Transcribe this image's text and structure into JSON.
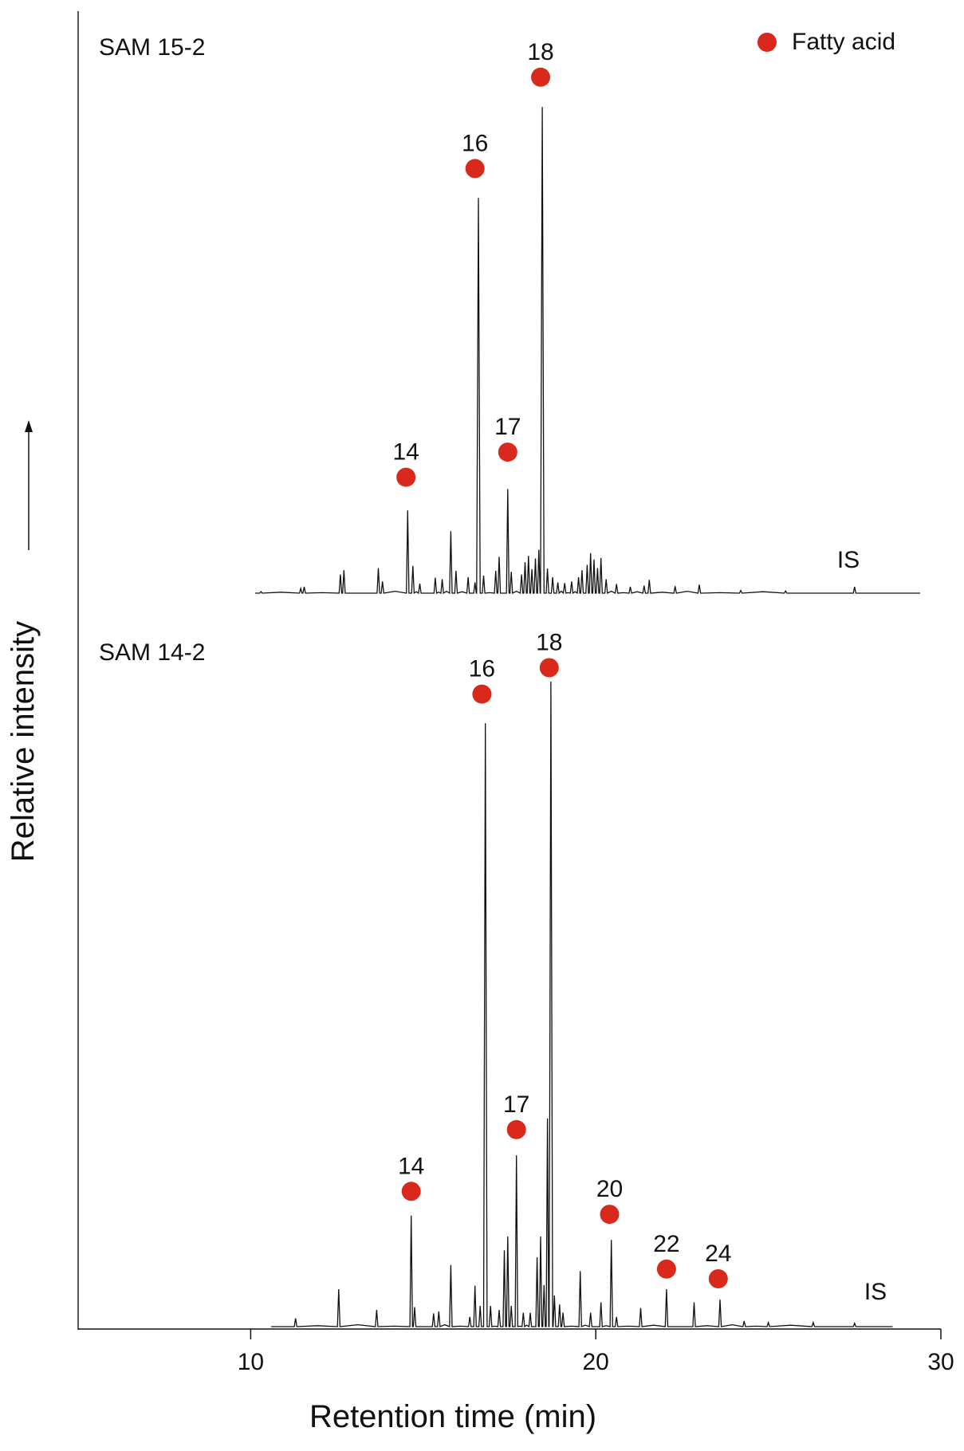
{
  "chart_data": {
    "type": "line",
    "xlabel": "Retention time (min)",
    "ylabel": "Relative intensity",
    "xlim": [
      5,
      30
    ],
    "xticks": [
      10,
      20,
      30
    ],
    "legend": {
      "label": "Fatty acid",
      "color": "#d9291c",
      "position": "top-right"
    },
    "panels": [
      {
        "name": "SAM 15-2",
        "is_label": "IS",
        "xmax": 29.4,
        "peaks": [
          {
            "x": 10.3,
            "y": 0.3
          },
          {
            "x": 11.45,
            "y": 0.9
          },
          {
            "x": 11.55,
            "y": 1.2
          },
          {
            "x": 12.6,
            "y": 3.5
          },
          {
            "x": 12.7,
            "y": 4.3
          },
          {
            "x": 13.7,
            "y": 4.7
          },
          {
            "x": 13.82,
            "y": 2.2
          },
          {
            "x": 14.55,
            "y": 15.5
          },
          {
            "x": 14.7,
            "y": 5.1
          },
          {
            "x": 14.9,
            "y": 1.8
          },
          {
            "x": 15.35,
            "y": 2.9
          },
          {
            "x": 15.55,
            "y": 2.6
          },
          {
            "x": 15.8,
            "y": 11.6
          },
          {
            "x": 15.95,
            "y": 4.2
          },
          {
            "x": 16.3,
            "y": 3.0
          },
          {
            "x": 16.5,
            "y": 2.0
          },
          {
            "x": 16.6,
            "y": 74.0
          },
          {
            "x": 16.75,
            "y": 3.3
          },
          {
            "x": 17.1,
            "y": 4.2
          },
          {
            "x": 17.2,
            "y": 6.8
          },
          {
            "x": 17.45,
            "y": 19.5
          },
          {
            "x": 17.55,
            "y": 4.0
          },
          {
            "x": 17.85,
            "y": 3.5
          },
          {
            "x": 17.95,
            "y": 5.8
          },
          {
            "x": 18.05,
            "y": 7.0
          },
          {
            "x": 18.15,
            "y": 4.5
          },
          {
            "x": 18.25,
            "y": 6.5
          },
          {
            "x": 18.35,
            "y": 8.1
          },
          {
            "x": 18.45,
            "y": 91.0
          },
          {
            "x": 18.6,
            "y": 4.6
          },
          {
            "x": 18.75,
            "y": 3.0
          },
          {
            "x": 18.9,
            "y": 2.0
          },
          {
            "x": 19.1,
            "y": 1.9
          },
          {
            "x": 19.3,
            "y": 2.2
          },
          {
            "x": 19.5,
            "y": 3.0
          },
          {
            "x": 19.6,
            "y": 4.3
          },
          {
            "x": 19.75,
            "y": 5.3
          },
          {
            "x": 19.85,
            "y": 7.5
          },
          {
            "x": 19.95,
            "y": 6.3
          },
          {
            "x": 20.05,
            "y": 4.7
          },
          {
            "x": 20.15,
            "y": 6.6
          },
          {
            "x": 20.3,
            "y": 2.6
          },
          {
            "x": 20.6,
            "y": 1.7
          },
          {
            "x": 21.0,
            "y": 1.2
          },
          {
            "x": 21.4,
            "y": 1.4
          },
          {
            "x": 21.55,
            "y": 2.5
          },
          {
            "x": 22.3,
            "y": 1.3
          },
          {
            "x": 23.0,
            "y": 1.6
          },
          {
            "x": 24.2,
            "y": 0.5
          },
          {
            "x": 25.5,
            "y": 0.4
          },
          {
            "x": 27.5,
            "y": 1.2
          }
        ],
        "fatty_acids": [
          {
            "label": "14",
            "x": 14.5,
            "y": 21.7
          },
          {
            "label": "16",
            "x": 16.5,
            "y": 79.5
          },
          {
            "label": "17",
            "x": 17.45,
            "y": 26.4
          },
          {
            "label": "18",
            "x": 18.4,
            "y": 96.6
          }
        ]
      },
      {
        "name": "SAM 14-2",
        "is_label": "IS",
        "xmax": 28.6,
        "peaks": [
          {
            "x": 11.3,
            "y": 1.2
          },
          {
            "x": 12.55,
            "y": 5.4
          },
          {
            "x": 13.65,
            "y": 2.4
          },
          {
            "x": 14.65,
            "y": 16.0
          },
          {
            "x": 14.75,
            "y": 2.8
          },
          {
            "x": 15.3,
            "y": 1.9
          },
          {
            "x": 15.45,
            "y": 2.2
          },
          {
            "x": 15.8,
            "y": 8.9
          },
          {
            "x": 16.35,
            "y": 1.4
          },
          {
            "x": 16.5,
            "y": 5.9
          },
          {
            "x": 16.65,
            "y": 3.0
          },
          {
            "x": 16.8,
            "y": 87.0
          },
          {
            "x": 16.95,
            "y": 3.0
          },
          {
            "x": 17.2,
            "y": 2.4
          },
          {
            "x": 17.35,
            "y": 11.0
          },
          {
            "x": 17.45,
            "y": 13.0
          },
          {
            "x": 17.55,
            "y": 3.0
          },
          {
            "x": 17.7,
            "y": 24.7
          },
          {
            "x": 17.9,
            "y": 2.0
          },
          {
            "x": 18.1,
            "y": 2.0
          },
          {
            "x": 18.3,
            "y": 10.0
          },
          {
            "x": 18.4,
            "y": 13.0
          },
          {
            "x": 18.5,
            "y": 6.0
          },
          {
            "x": 18.6,
            "y": 30.0
          },
          {
            "x": 18.7,
            "y": 93.0
          },
          {
            "x": 18.8,
            "y": 4.5
          },
          {
            "x": 18.95,
            "y": 3.2
          },
          {
            "x": 19.05,
            "y": 2.0
          },
          {
            "x": 19.55,
            "y": 8.0
          },
          {
            "x": 19.85,
            "y": 2.0
          },
          {
            "x": 20.15,
            "y": 3.5
          },
          {
            "x": 20.45,
            "y": 12.5
          },
          {
            "x": 20.6,
            "y": 1.4
          },
          {
            "x": 21.3,
            "y": 2.7
          },
          {
            "x": 22.05,
            "y": 5.4
          },
          {
            "x": 22.85,
            "y": 3.5
          },
          {
            "x": 23.6,
            "y": 3.9
          },
          {
            "x": 24.3,
            "y": 0.8
          },
          {
            "x": 25.0,
            "y": 0.6
          },
          {
            "x": 26.3,
            "y": 0.6
          },
          {
            "x": 27.5,
            "y": 0.5
          }
        ],
        "fatty_acids": [
          {
            "label": "14",
            "x": 14.65,
            "y": 19.5
          },
          {
            "label": "16",
            "x": 16.7,
            "y": 91.2
          },
          {
            "label": "17",
            "x": 17.7,
            "y": 28.4
          },
          {
            "label": "18",
            "x": 18.65,
            "y": 95.0
          },
          {
            "label": "20",
            "x": 20.4,
            "y": 16.2
          },
          {
            "label": "22",
            "x": 22.05,
            "y": 8.3
          },
          {
            "label": "24",
            "x": 23.55,
            "y": 6.9
          }
        ]
      }
    ]
  }
}
